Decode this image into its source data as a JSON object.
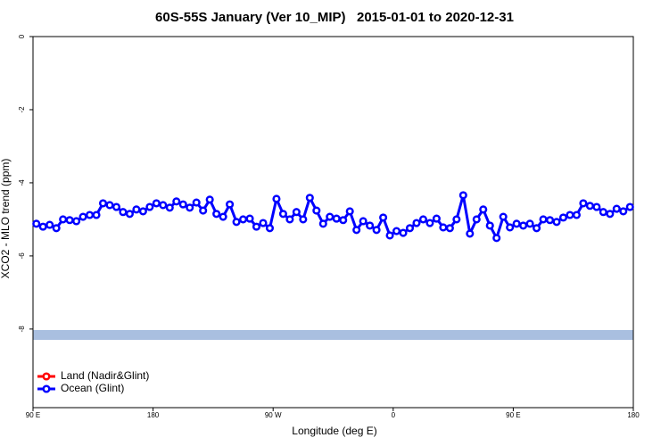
{
  "chart_data": {
    "type": "line",
    "title": "60S-55S January (Ver 10_MIP)   2015-01-01 to 2020-12-31",
    "xlabel": "Longitude (deg E)",
    "ylabel": "XCO2 - MLO trend (ppm)",
    "xlim": [
      90,
      540
    ],
    "ylim": [
      -10.15,
      0
    ],
    "xticks": [
      {
        "value": 90,
        "label": "90 E"
      },
      180,
      {
        "value": 270,
        "label": "90 W"
      },
      {
        "value": 360,
        "label": "0"
      },
      {
        "value": 450,
        "label": "90 E"
      },
      {
        "value": 540,
        "label": "180"
      }
    ],
    "yticks": [
      0,
      -2,
      -4,
      -6,
      -8
    ],
    "legend": "bottom-left",
    "x": [
      92.5,
      97.5,
      102.5,
      107.5,
      112.5,
      117.5,
      122.5,
      127.5,
      132.5,
      137.5,
      142.5,
      147.5,
      152.5,
      157.5,
      162.5,
      167.5,
      172.5,
      177.5,
      182.5,
      187.5,
      192.5,
      197.5,
      202.5,
      207.5,
      212.5,
      217.5,
      222.5,
      227.5,
      232.5,
      237.5,
      242.5,
      247.5,
      252.5,
      257.5,
      262.5,
      267.5,
      272.5,
      277.5,
      282.5,
      287.5,
      292.5,
      297.5,
      302.5,
      307.5,
      312.5,
      317.5,
      322.5,
      327.5,
      332.5,
      337.5,
      342.5,
      347.5,
      352.5,
      357.5,
      362.5,
      367.5,
      372.5,
      377.5,
      382.5,
      387.5,
      392.5,
      397.5,
      402.5,
      407.5,
      412.5,
      417.5,
      422.5,
      427.5,
      432.5,
      437.5,
      442.5,
      447.5,
      452.5,
      457.5,
      462.5,
      467.5,
      472.5,
      477.5,
      482.5,
      487.5,
      492.5,
      497.5,
      502.5,
      507.5,
      512.5,
      517.5,
      522.5,
      527.5,
      532.5,
      537.5
    ],
    "series": [
      {
        "name": "Land (Nadir&Glint)",
        "color": "#ff0000",
        "values": [
          null,
          null,
          null,
          null,
          null,
          null,
          null,
          null,
          null,
          null,
          null,
          null,
          null,
          null,
          null,
          null,
          null,
          null,
          null,
          null,
          null,
          null,
          null,
          null,
          null,
          null,
          null,
          null,
          null,
          null,
          null,
          null,
          null,
          null,
          null,
          null,
          null,
          null,
          null,
          null,
          null,
          null,
          null,
          null,
          null,
          null,
          null,
          null,
          null,
          null,
          null,
          null,
          null,
          null,
          null,
          null,
          null,
          null,
          null,
          null,
          null,
          null,
          null,
          null,
          null,
          null,
          null,
          null,
          null,
          null,
          null,
          null,
          null,
          null,
          null,
          null,
          null,
          null,
          null,
          null,
          null,
          null,
          null,
          null,
          null,
          null,
          null,
          null,
          null,
          null
        ]
      },
      {
        "name": "Ocean (Glint)",
        "color": "#0000ff",
        "values": [
          -5.12,
          -5.2,
          -5.15,
          -5.24,
          -5.0,
          -5.02,
          -5.05,
          -4.93,
          -4.88,
          -4.88,
          -4.56,
          -4.61,
          -4.66,
          -4.8,
          -4.85,
          -4.73,
          -4.78,
          -4.66,
          -4.56,
          -4.61,
          -4.68,
          -4.51,
          -4.59,
          -4.68,
          -4.54,
          -4.76,
          -4.46,
          -4.85,
          -4.93,
          -4.59,
          -5.07,
          -5.0,
          -4.98,
          -5.2,
          -5.1,
          -5.24,
          -4.44,
          -4.85,
          -5.0,
          -4.8,
          -5.0,
          -4.41,
          -4.76,
          -5.12,
          -4.93,
          -4.98,
          -5.02,
          -4.78,
          -5.29,
          -5.05,
          -5.17,
          -5.29,
          -4.95,
          -5.44,
          -5.32,
          -5.37,
          -5.24,
          -5.1,
          -5.0,
          -5.1,
          -4.98,
          -5.22,
          -5.24,
          -5.0,
          -4.34,
          -5.39,
          -5.0,
          -4.73,
          -5.17,
          -5.51,
          -4.93,
          -5.22,
          -5.12,
          -5.17,
          -5.12,
          -5.24,
          -5.0,
          -5.02,
          -5.07,
          -4.95,
          -4.88,
          -4.88,
          -4.56,
          -4.63,
          -4.66,
          -4.8,
          -4.85,
          -4.71,
          -4.78,
          -4.66
        ]
      }
    ]
  }
}
